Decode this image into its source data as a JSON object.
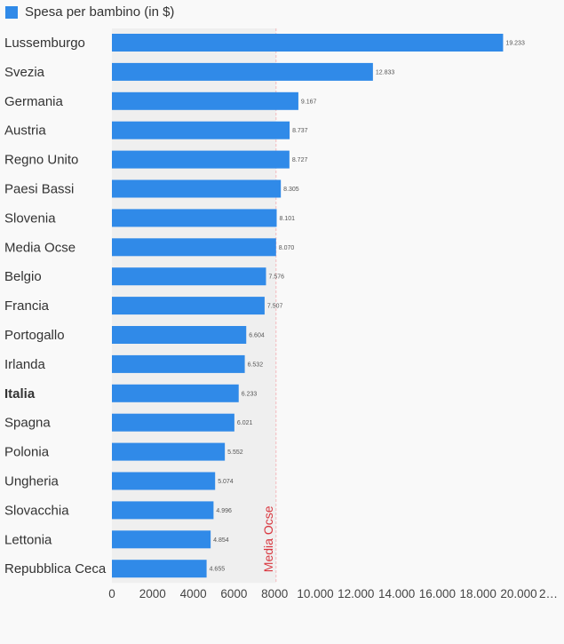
{
  "chart_data": {
    "type": "bar",
    "orientation": "horizontal",
    "title": "",
    "legend": [
      {
        "label": "Spesa per bambino (in $)",
        "color": "#308ae8"
      }
    ],
    "legend_position": "top-left",
    "categories": [
      "Lussemburgo",
      "Svezia",
      "Germania",
      "Austria",
      "Regno Unito",
      "Paesi Bassi",
      "Slovenia",
      "Media Ocse",
      "Belgio",
      "Francia",
      "Portogallo",
      "Irlanda",
      "Italia",
      "Spagna",
      "Polonia",
      "Ungheria",
      "Slovacchia",
      "Lettonia",
      "Repubblica Ceca"
    ],
    "values": [
      19233,
      12833,
      9167,
      8737,
      8727,
      8305,
      8101,
      8070,
      7576,
      7507,
      6604,
      6532,
      6233,
      6021,
      5552,
      5074,
      4996,
      4854,
      4655
    ],
    "value_labels": [
      "19.233",
      "12.833",
      "9.167",
      "8.737",
      "8.727",
      "8.305",
      "8.101",
      "8.070",
      "7.576",
      "7.507",
      "6.604",
      "6.532",
      "6.233",
      "6.021",
      "5.552",
      "5.074",
      "4.996",
      "4.854",
      "4.655"
    ],
    "highlight": {
      "Media Ocse": "red",
      "Italia": "bold"
    },
    "xticks": [
      "0",
      "2000",
      "4000",
      "6000",
      "8000",
      "10.000",
      "12.000",
      "14.000",
      "16.000",
      "18.000",
      "20.000",
      "2…"
    ],
    "xtick_values": [
      0,
      2000,
      4000,
      6000,
      8000,
      10000,
      12000,
      14000,
      16000,
      18000,
      20000,
      22000
    ],
    "xlim": [
      0,
      22000
    ],
    "reference_line": {
      "label": "Media Ocse",
      "value": 8070,
      "color": "#d9363e"
    },
    "shaded_region": [
      0,
      8070
    ],
    "bar_color": "#308ae8",
    "grid": false
  }
}
